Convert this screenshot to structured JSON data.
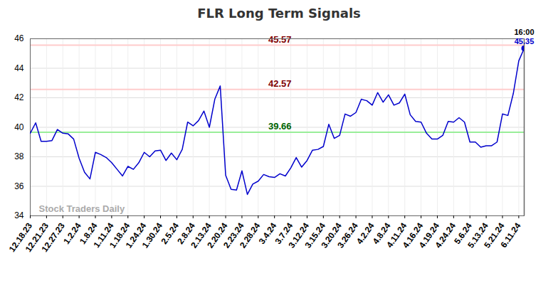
{
  "chart_data": {
    "type": "line",
    "title": "FLR Long Term Signals",
    "watermark": "Stock Traders Daily",
    "categories": [
      "12.18.23",
      null,
      null,
      "12.21.23",
      null,
      null,
      "12.27.23",
      null,
      null,
      "1.2.24",
      null,
      null,
      "1.8.24",
      null,
      null,
      "1.11.24",
      null,
      null,
      "1.18.24",
      null,
      null,
      "1.24.24",
      null,
      null,
      "1.30.24",
      null,
      null,
      "2.5.24",
      null,
      null,
      "2.8.24",
      null,
      null,
      "2.13.24",
      null,
      null,
      "2.20.24",
      null,
      null,
      "2.23.24",
      null,
      null,
      "2.28.24",
      null,
      null,
      "3.4.24",
      null,
      null,
      "3.7.24",
      null,
      null,
      "3.12.24",
      null,
      null,
      "3.15.24",
      null,
      null,
      "3.20.24",
      null,
      null,
      "3.26.24",
      null,
      null,
      "4.2.24",
      null,
      null,
      "4.8.24",
      null,
      null,
      "4.11.24",
      null,
      null,
      "4.16.24",
      null,
      null,
      "4.19.24",
      null,
      null,
      "4.24.24",
      null,
      null,
      "5.6.24",
      null,
      null,
      "5.13.24",
      null,
      null,
      "5.21.24",
      null,
      null,
      "6.11.24",
      null
    ],
    "values": [
      39.6,
      40.3,
      39.05,
      39.05,
      39.1,
      39.85,
      39.6,
      39.55,
      39.2,
      37.9,
      36.95,
      36.5,
      38.3,
      38.15,
      37.95,
      37.6,
      37.15,
      36.7,
      37.35,
      37.15,
      37.6,
      38.3,
      38.0,
      38.4,
      38.45,
      37.75,
      38.25,
      37.8,
      38.5,
      40.35,
      40.1,
      40.45,
      41.1,
      40.0,
      41.9,
      42.8,
      36.75,
      35.8,
      35.75,
      37.05,
      35.45,
      36.15,
      36.35,
      36.8,
      36.65,
      36.6,
      36.85,
      36.7,
      37.25,
      37.95,
      37.3,
      37.75,
      38.45,
      38.5,
      38.7,
      40.2,
      39.25,
      39.45,
      40.9,
      40.75,
      41.0,
      41.9,
      41.8,
      41.5,
      42.35,
      41.7,
      42.2,
      41.5,
      41.65,
      42.25,
      40.85,
      40.4,
      40.35,
      39.6,
      39.2,
      39.2,
      39.45,
      40.4,
      40.35,
      40.65,
      40.35,
      39.0,
      39.0,
      38.65,
      38.75,
      38.75,
      39.0,
      40.9,
      40.8,
      42.3,
      44.5,
      45.35
    ],
    "color": "#0000cc",
    "ylim": [
      34,
      46
    ],
    "yticks": [
      34,
      36,
      38,
      40,
      42,
      44,
      46
    ],
    "grid": true,
    "annotations": [
      {
        "value": 45.57,
        "label": "45.57",
        "color": "#ffcccc",
        "text_color": "#800000"
      },
      {
        "value": 42.57,
        "label": "42.57",
        "color": "#ffcccc",
        "text_color": "#800000"
      },
      {
        "value": 39.66,
        "label": "39.66",
        "color": "#99ee99",
        "text_color": "#006400"
      }
    ],
    "last_point": {
      "time": "16:00",
      "label": "45.35"
    }
  }
}
